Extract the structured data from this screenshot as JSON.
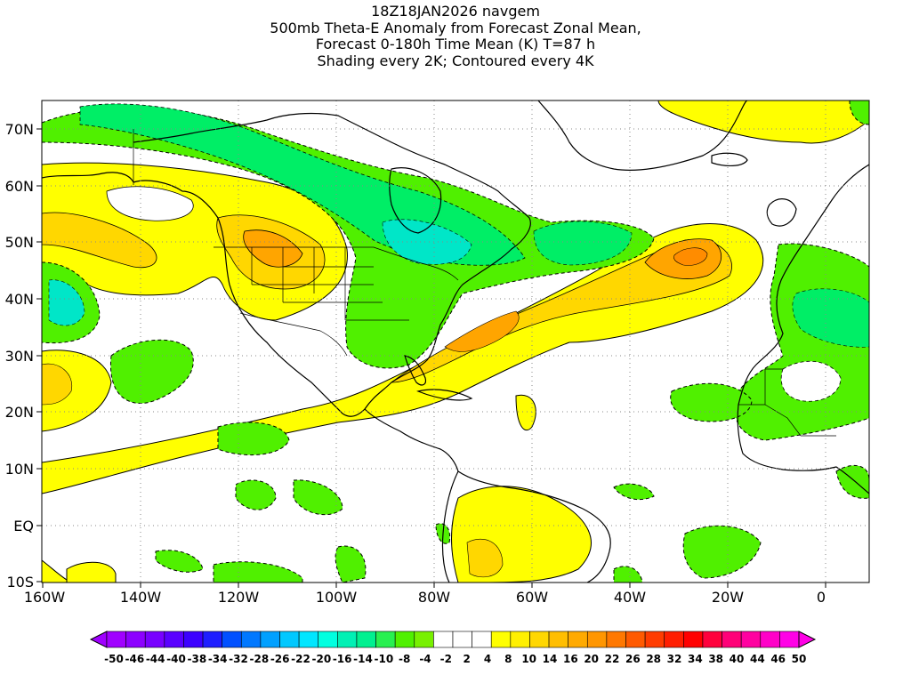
{
  "title": {
    "line1": "18Z18JAN2026 navgem",
    "line2": "500mb Theta-E Anomaly from Forecast Zonal Mean,",
    "line3": "Forecast 0-180h Time Mean (K) T=87 h",
    "line4": "Shading every 2K; Contoured every 4K"
  },
  "axes": {
    "lon_labels": [
      "160W",
      "140W",
      "120W",
      "100W",
      "80W",
      "60W",
      "40W",
      "20W",
      "0"
    ],
    "lat_labels": [
      "70N",
      "60N",
      "50N",
      "40N",
      "30N",
      "20N",
      "10N",
      "EQ",
      "10S"
    ],
    "lon_range": [
      -160,
      10
    ],
    "lat_range": [
      -10,
      75
    ]
  },
  "colorbar": {
    "labels": [
      "-50",
      "-46",
      "-44",
      "-40",
      "-38",
      "-34",
      "-32",
      "-28",
      "-26",
      "-22",
      "-20",
      "-16",
      "-14",
      "-10",
      "-8",
      "-4",
      "-2",
      "2",
      "4",
      "8",
      "10",
      "14",
      "16",
      "20",
      "22",
      "26",
      "28",
      "32",
      "34",
      "38",
      "40",
      "44",
      "46",
      "50"
    ],
    "colors": [
      "#a000ff",
      "#8c00ff",
      "#7800ff",
      "#5a00ff",
      "#3c00ff",
      "#1e1eff",
      "#0050ff",
      "#0078ff",
      "#00a0ff",
      "#00c8ff",
      "#00e6ff",
      "#00ffe0",
      "#00f0b4",
      "#00f090",
      "#28f050",
      "#50f000",
      "#78f000",
      "#ffffff",
      "#ffffff",
      "#ffffff",
      "#ffff00",
      "#fff000",
      "#ffd700",
      "#ffbe00",
      "#ffaa00",
      "#ff9600",
      "#ff7800",
      "#ff5a00",
      "#ff3c00",
      "#ff1e00",
      "#ff0000",
      "#ff003c",
      "#ff0078",
      "#ff00a0",
      "#ff00c8",
      "#ff00e6"
    ]
  },
  "fields": {
    "levels_colors": {
      "y2": "#ffff00",
      "y4": "#ffd700",
      "o": "#ffa500",
      "g2": "#50f000",
      "g4": "#00ee66",
      "c": "#00e6c8"
    }
  }
}
